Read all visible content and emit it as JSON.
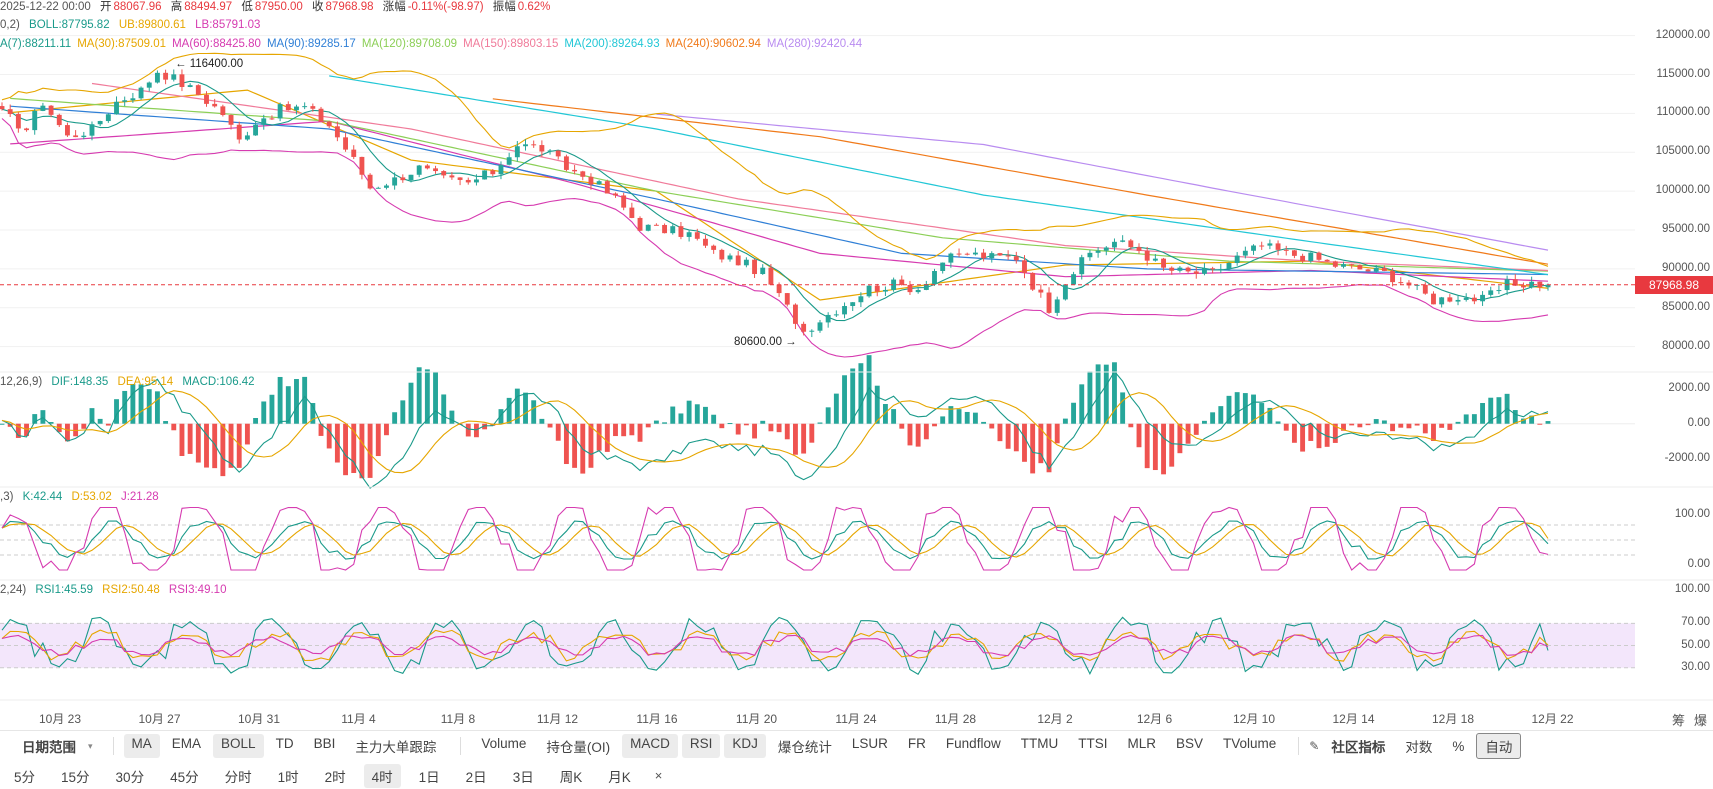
{
  "header": {
    "date": "2025-12-22 00:00",
    "open_label": "开",
    "open": "88067.96",
    "high_label": "高",
    "high": "88494.97",
    "low_label": "低",
    "low": "87950.00",
    "close_label": "收",
    "close": "87968.98",
    "change_label": "涨幅",
    "change": "-0.11%(-98.97)",
    "amp_label": "振幅",
    "amp": "0.62%"
  },
  "boll": {
    "params": "0,2)",
    "boll": "BOLL:87795.82",
    "ub": "UB:89800.61",
    "lb": "LB:85791.03"
  },
  "ma_legend": [
    {
      "text": "A(7):88211.11",
      "color": "#1a9a8a"
    },
    {
      "text": "MA(30):87509.01",
      "color": "#e6a600"
    },
    {
      "text": "MA(60):88425.80",
      "color": "#d63bb0"
    },
    {
      "text": "MA(90):89285.17",
      "color": "#2f7fd6"
    },
    {
      "text": "MA(120):89708.09",
      "color": "#8ccf57"
    },
    {
      "text": "MA(150):89803.15",
      "color": "#f07b9a"
    },
    {
      "text": "MA(200):89264.93",
      "color": "#22c7d6"
    },
    {
      "text": "MA(240):90602.94",
      "color": "#f07a1a"
    },
    {
      "text": "MA(280):92420.44",
      "color": "#b98cf0"
    }
  ],
  "macd_legend": {
    "params": "12,26,9)",
    "dif": "DIF:148.35",
    "dea": "DEA:95.14",
    "macd": "MACD:106.42"
  },
  "kdj_legend": {
    "params": ",3)",
    "k": "K:42.44",
    "d": "D:53.02",
    "j": "J:21.28"
  },
  "rsi_legend": {
    "params": "2,24)",
    "rsi1": "RSI1:45.59",
    "rsi2": "RSI2:50.48",
    "rsi3": "RSI3:49.10"
  },
  "annotations": {
    "high_marker": "← 116400.00",
    "low_marker": "80600.00 →"
  },
  "current_price": "87968.98",
  "price_axis": [
    "120000.00",
    "115000.00",
    "110000.00",
    "105000.00",
    "100000.00",
    "95000.00",
    "90000.00",
    "85000.00",
    "80000.00"
  ],
  "macd_axis": [
    "2000.00",
    "0.00",
    "-2000.00"
  ],
  "kdj_axis": [
    "100.00",
    "0.00"
  ],
  "rsi_axis": [
    "100.00",
    "70.00",
    "50.00",
    "30.00"
  ],
  "x_axis": [
    "10月 23",
    "10月 27",
    "10月 31",
    "11月 4",
    "11月 8",
    "11月 12",
    "11月 16",
    "11月 20",
    "11月 24",
    "11月 28",
    "12月 2",
    "12月 6",
    "12月 10",
    "12月 14",
    "12月 18",
    "12月 22"
  ],
  "corner_labels": [
    "筹",
    "爆"
  ],
  "indicator_toolbar": {
    "date_range": "日期范围",
    "left": [
      {
        "label": "MA",
        "active": true
      },
      {
        "label": "EMA",
        "active": false
      },
      {
        "label": "BOLL",
        "active": true
      },
      {
        "label": "TD",
        "active": false
      },
      {
        "label": "BBI",
        "active": false
      },
      {
        "label": "主力大单跟踪",
        "active": false
      }
    ],
    "right": [
      {
        "label": "Volume",
        "active": false
      },
      {
        "label": "持仓量(OI)",
        "active": false
      },
      {
        "label": "MACD",
        "active": true
      },
      {
        "label": "RSI",
        "active": true
      },
      {
        "label": "KDJ",
        "active": true
      },
      {
        "label": "爆仓统计",
        "active": false
      },
      {
        "label": "LSUR",
        "active": false
      },
      {
        "label": "FR",
        "active": false
      },
      {
        "label": "Fundflow",
        "active": false
      },
      {
        "label": "TTMU",
        "active": false
      },
      {
        "label": "TTSI",
        "active": false
      },
      {
        "label": "MLR",
        "active": false
      },
      {
        "label": "BSV",
        "active": false
      },
      {
        "label": "TVolume",
        "active": false
      }
    ],
    "community": "社区指标",
    "log": "对数",
    "percent": "%",
    "auto": "自动"
  },
  "timeframes": [
    {
      "label": "5分",
      "active": false
    },
    {
      "label": "15分",
      "active": false
    },
    {
      "label": "30分",
      "active": false
    },
    {
      "label": "45分",
      "active": false
    },
    {
      "label": "分时",
      "active": false
    },
    {
      "label": "1时",
      "active": false
    },
    {
      "label": "2时",
      "active": false
    },
    {
      "label": "4时",
      "active": true
    },
    {
      "label": "1日",
      "active": false
    },
    {
      "label": "2日",
      "active": false
    },
    {
      "label": "3日",
      "active": false
    },
    {
      "label": "周K",
      "active": false
    },
    {
      "label": "月K",
      "active": false
    }
  ],
  "close_symbol": "×",
  "chart_data": {
    "type": "candlestick",
    "title": "",
    "interval": "4时",
    "x_range": [
      "10月 22",
      "12月 22"
    ],
    "price_range": [
      77000,
      121500
    ],
    "marked_high": 116400,
    "marked_low": 80600,
    "last_close": 87968.98,
    "close_anchors": [
      [
        0,
        110000
      ],
      [
        3,
        108000
      ],
      [
        5,
        111500
      ],
      [
        8,
        107000
      ],
      [
        11,
        108000
      ],
      [
        14,
        111500
      ],
      [
        17,
        113000
      ],
      [
        19,
        115500
      ],
      [
        21,
        114500
      ],
      [
        24,
        112500
      ],
      [
        27,
        110000
      ],
      [
        29,
        106500
      ],
      [
        31,
        109000
      ],
      [
        34,
        110500
      ],
      [
        37,
        110800
      ],
      [
        40,
        108500
      ],
      [
        43,
        104000
      ],
      [
        45,
        100500
      ],
      [
        48,
        101500
      ],
      [
        51,
        103000
      ],
      [
        54,
        101500
      ],
      [
        57,
        101000
      ],
      [
        60,
        102500
      ],
      [
        63,
        106000
      ],
      [
        66,
        105500
      ],
      [
        69,
        103000
      ],
      [
        72,
        101500
      ],
      [
        75,
        99000
      ],
      [
        78,
        95500
      ],
      [
        81,
        95000
      ],
      [
        84,
        94500
      ],
      [
        87,
        92000
      ],
      [
        90,
        91000
      ],
      [
        93,
        89500
      ],
      [
        96,
        85000
      ],
      [
        98,
        82000
      ],
      [
        100,
        83500
      ],
      [
        103,
        85500
      ],
      [
        106,
        87500
      ],
      [
        109,
        88000
      ],
      [
        112,
        87500
      ],
      [
        115,
        91000
      ],
      [
        118,
        92000
      ],
      [
        121,
        91500
      ],
      [
        124,
        91500
      ],
      [
        126,
        88000
      ],
      [
        128,
        85000
      ],
      [
        130,
        88500
      ],
      [
        133,
        92000
      ],
      [
        136,
        93500
      ],
      [
        139,
        92500
      ],
      [
        142,
        90000
      ],
      [
        145,
        89500
      ],
      [
        148,
        89500
      ],
      [
        151,
        91500
      ],
      [
        154,
        93000
      ],
      [
        157,
        92000
      ],
      [
        160,
        91500
      ],
      [
        163,
        90500
      ],
      [
        166,
        90000
      ],
      [
        169,
        89500
      ],
      [
        172,
        88000
      ],
      [
        175,
        86000
      ],
      [
        178,
        86500
      ],
      [
        181,
        86000
      ],
      [
        184,
        88000
      ],
      [
        187,
        88200
      ],
      [
        189,
        87969
      ]
    ],
    "boll": {
      "mid_anchors": [
        [
          0,
          110000
        ],
        [
          40,
          106000
        ],
        [
          70,
          100000
        ],
        [
          100,
          86000
        ],
        [
          120,
          89000
        ],
        [
          150,
          90000
        ],
        [
          189,
          87796
        ]
      ],
      "ub": 89800.61,
      "lb": 85791.03
    },
    "ma_anchors": {
      "MA(30)": [
        [
          0,
          110000
        ],
        [
          30,
          113000
        ],
        [
          50,
          104000
        ],
        [
          80,
          100000
        ],
        [
          100,
          86000
        ],
        [
          130,
          90500
        ],
        [
          160,
          91000
        ],
        [
          189,
          87509
        ]
      ],
      "MA(60)": [
        [
          0,
          106000
        ],
        [
          40,
          109000
        ],
        [
          70,
          101000
        ],
        [
          100,
          92000
        ],
        [
          130,
          89000
        ],
        [
          160,
          89800
        ],
        [
          189,
          88426
        ]
      ],
      "MA(90)": [
        [
          0,
          111000
        ],
        [
          40,
          108000
        ],
        [
          80,
          99000
        ],
        [
          110,
          92000
        ],
        [
          140,
          90000
        ],
        [
          189,
          89285
        ]
      ],
      "MA(120)": [
        [
          0,
          112000
        ],
        [
          40,
          109000
        ],
        [
          80,
          100000
        ],
        [
          115,
          94000
        ],
        [
          150,
          91000
        ],
        [
          189,
          89708
        ]
      ],
      "MA(150)": [
        [
          10,
          114000
        ],
        [
          50,
          108000
        ],
        [
          90,
          99000
        ],
        [
          130,
          93000
        ],
        [
          160,
          91000
        ],
        [
          189,
          89803
        ]
      ],
      "MA(200)": [
        [
          39,
          115000
        ],
        [
          80,
          108000
        ],
        [
          120,
          99500
        ],
        [
          160,
          93500
        ],
        [
          189,
          89265
        ]
      ],
      "MA(240)": [
        [
          59,
          112000
        ],
        [
          100,
          107000
        ],
        [
          140,
          99500
        ],
        [
          189,
          90603
        ]
      ],
      "MA(280)": [
        [
          79,
          110000
        ],
        [
          120,
          106000
        ],
        [
          150,
          100000
        ],
        [
          189,
          92420
        ]
      ]
    },
    "macd": {
      "axis_range": [
        -3200,
        2600
      ],
      "dif": 148.35,
      "dea": 95.14,
      "macd": 106.42
    },
    "kdj": {
      "axis_range": [
        -20,
        120
      ],
      "k": 42.44,
      "d": 53.02,
      "j": 21.28,
      "levels": [
        80,
        50,
        20
      ]
    },
    "rsi": {
      "axis_range": [
        10,
        100
      ],
      "rsi1": 45.59,
      "rsi2": 50.48,
      "rsi3": 49.1,
      "band": [
        30,
        70
      ]
    }
  }
}
